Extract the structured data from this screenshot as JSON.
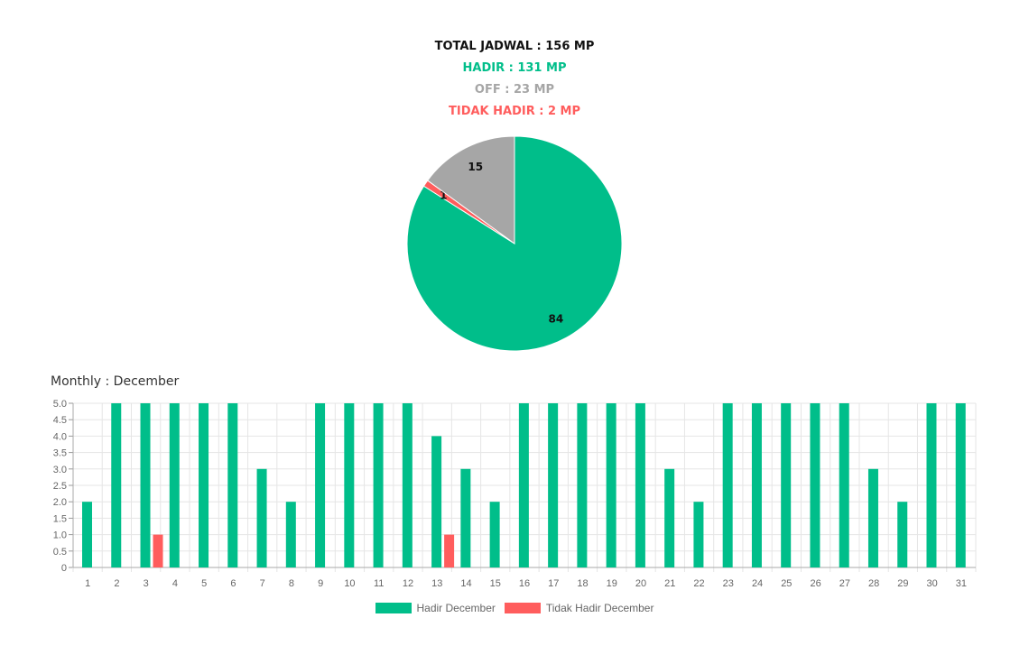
{
  "summary": {
    "total": "TOTAL JADWAL : 156 MP",
    "hadir": "HADIR : 131 MP",
    "off": "OFF : 23 MP",
    "tidak_hadir": "TIDAK HADIR : 2 MP"
  },
  "colors": {
    "hadir": "#00be8a",
    "off": "#a6a6a6",
    "tidak_hadir": "#ff5d5d",
    "grid": "#e5e5e5"
  },
  "monthly_title": "Monthly : December",
  "chart_data": [
    {
      "type": "pie",
      "slices": [
        {
          "name": "Hadir",
          "value": 84,
          "color": "#00be8a"
        },
        {
          "name": "Tidak Hadir",
          "value": 1,
          "color": "#ff5d5d"
        },
        {
          "name": "Off",
          "value": 15,
          "color": "#a6a6a6"
        }
      ]
    },
    {
      "type": "bar",
      "categories": [
        "1",
        "2",
        "3",
        "4",
        "5",
        "6",
        "7",
        "8",
        "9",
        "10",
        "11",
        "12",
        "13",
        "14",
        "15",
        "16",
        "17",
        "18",
        "19",
        "20",
        "21",
        "22",
        "23",
        "24",
        "25",
        "26",
        "27",
        "28",
        "29",
        "30",
        "31"
      ],
      "series": [
        {
          "name": "Hadir December",
          "color": "#00be8a",
          "values": [
            2,
            5,
            5,
            5,
            5,
            5,
            3,
            2,
            5,
            5,
            5,
            5,
            4,
            3,
            2,
            5,
            5,
            5,
            5,
            5,
            3,
            2,
            5,
            5,
            5,
            5,
            5,
            3,
            2,
            5,
            5
          ]
        },
        {
          "name": "Tidak Hadir December",
          "color": "#ff5d5d",
          "values": [
            0,
            0,
            1,
            0,
            0,
            0,
            0,
            0,
            0,
            0,
            0,
            0,
            1,
            0,
            0,
            0,
            0,
            0,
            0,
            0,
            0,
            0,
            0,
            0,
            0,
            0,
            0,
            0,
            0,
            0,
            0
          ]
        }
      ],
      "ylim": [
        0,
        5
      ],
      "yticks": [
        "0",
        "0.5",
        "1.0",
        "1.5",
        "2.0",
        "2.5",
        "3.0",
        "3.5",
        "4.0",
        "4.5",
        "5.0"
      ],
      "grid": true,
      "legend": "bottom"
    }
  ]
}
